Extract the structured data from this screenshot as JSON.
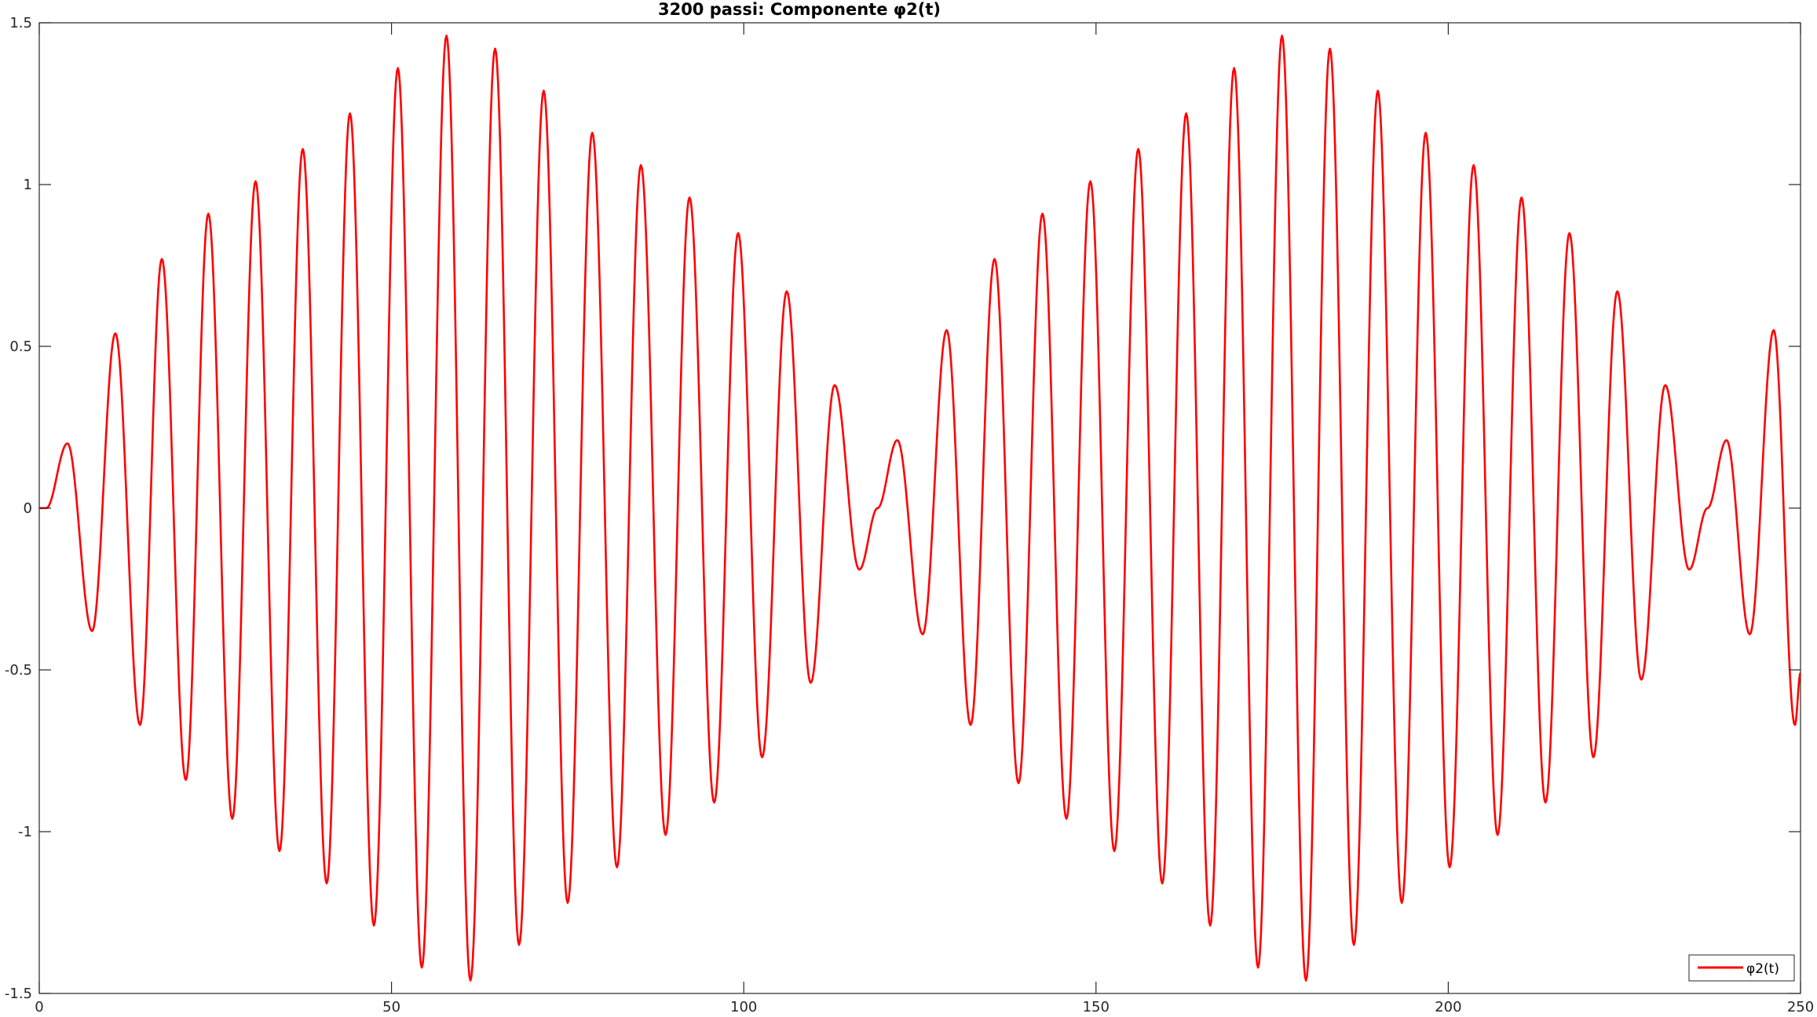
{
  "chart_data": {
    "type": "line",
    "title": "3200 passi: Componente φ2(t)",
    "xlabel": "",
    "ylabel": "",
    "xlim": [
      0,
      250
    ],
    "ylim": [
      -1.5,
      1.5
    ],
    "x_ticks": [
      0,
      50,
      100,
      150,
      200,
      250
    ],
    "x_tick_labels": [
      "0",
      "50",
      "100",
      "150",
      "200",
      "250"
    ],
    "y_ticks": [
      -1.5,
      -1,
      -0.5,
      0,
      0.5,
      1,
      1.5
    ],
    "y_tick_labels": [
      "-1.5",
      "-1",
      "-0.5",
      "0",
      "0.5",
      "1",
      "1.5"
    ],
    "grid": false,
    "legend_position": "bottom-right",
    "series": [
      {
        "name": "φ2(t)",
        "color": "#ff0000",
        "extrema": [
          [
            0,
            0
          ],
          [
            1,
            0.0
          ],
          [
            4,
            0.2
          ],
          [
            7.5,
            -0.38
          ],
          [
            10.8,
            0.54
          ],
          [
            14.3,
            -0.67
          ],
          [
            17.4,
            0.77
          ],
          [
            20.8,
            -0.84
          ],
          [
            24,
            0.91
          ],
          [
            27.4,
            -0.96
          ],
          [
            30.7,
            1.01
          ],
          [
            34.1,
            -1.06
          ],
          [
            37.4,
            1.11
          ],
          [
            40.8,
            -1.16
          ],
          [
            44.1,
            1.22
          ],
          [
            47.5,
            -1.29
          ],
          [
            50.9,
            1.36
          ],
          [
            54.3,
            -1.42
          ],
          [
            57.8,
            1.46
          ],
          [
            61.2,
            -1.46
          ],
          [
            64.7,
            1.42
          ],
          [
            68.1,
            -1.35
          ],
          [
            71.6,
            1.29
          ],
          [
            75,
            -1.22
          ],
          [
            78.5,
            1.16
          ],
          [
            82,
            -1.11
          ],
          [
            85.4,
            1.06
          ],
          [
            88.9,
            -1.01
          ],
          [
            92.3,
            0.96
          ],
          [
            95.8,
            -0.91
          ],
          [
            99.2,
            0.85
          ],
          [
            102.6,
            -0.77
          ],
          [
            106.1,
            0.67
          ],
          [
            109.5,
            -0.54
          ],
          [
            112.9,
            0.38
          ],
          [
            116.4,
            -0.19
          ],
          [
            119,
            0.0
          ],
          [
            121.8,
            0.21
          ],
          [
            125.4,
            -0.39
          ],
          [
            128.8,
            0.55
          ],
          [
            132.2,
            -0.67
          ],
          [
            135.6,
            0.77
          ],
          [
            139,
            -0.85
          ],
          [
            142.4,
            0.91
          ],
          [
            145.8,
            -0.96
          ],
          [
            149.2,
            1.01
          ],
          [
            152.6,
            -1.06
          ],
          [
            156,
            1.11
          ],
          [
            159.4,
            -1.16
          ],
          [
            162.8,
            1.22
          ],
          [
            166.2,
            -1.29
          ],
          [
            169.6,
            1.36
          ],
          [
            173,
            -1.42
          ],
          [
            176.4,
            1.46
          ],
          [
            179.8,
            -1.46
          ],
          [
            183.2,
            1.42
          ],
          [
            186.6,
            -1.35
          ],
          [
            190,
            1.29
          ],
          [
            193.4,
            -1.22
          ],
          [
            196.8,
            1.16
          ],
          [
            200.2,
            -1.11
          ],
          [
            203.6,
            1.06
          ],
          [
            207,
            -1.01
          ],
          [
            210.4,
            0.96
          ],
          [
            213.8,
            -0.91
          ],
          [
            217.2,
            0.85
          ],
          [
            220.6,
            -0.77
          ],
          [
            224,
            0.67
          ],
          [
            227.4,
            -0.53
          ],
          [
            230.8,
            0.38
          ],
          [
            234.2,
            -0.19
          ],
          [
            236.8,
            0.0
          ],
          [
            239.5,
            0.21
          ],
          [
            242.8,
            -0.39
          ],
          [
            246.2,
            0.55
          ],
          [
            249.2,
            -0.67
          ],
          [
            250,
            -0.51
          ]
        ]
      }
    ]
  }
}
